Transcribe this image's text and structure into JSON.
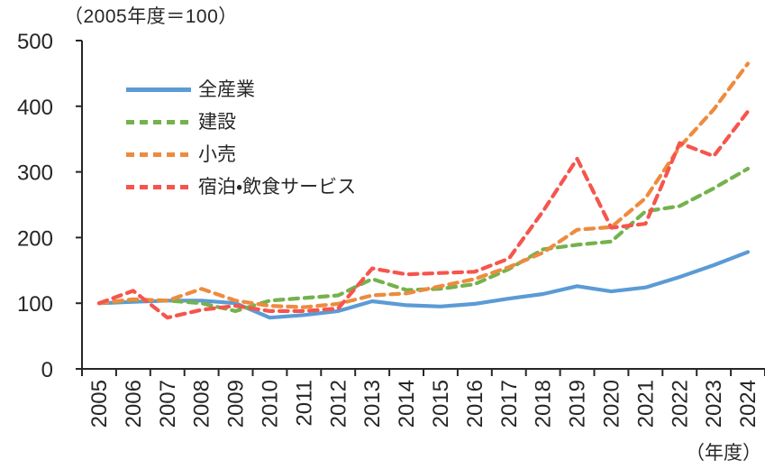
{
  "chart_data": {
    "type": "line",
    "note": "（2005年度＝100）",
    "xlabel": "（年度）",
    "categories": [
      "2005",
      "2006",
      "2007",
      "2008",
      "2009",
      "2010",
      "2011",
      "2012",
      "2013",
      "2014",
      "2015",
      "2016",
      "2017",
      "2018",
      "2019",
      "2020",
      "2021",
      "2022",
      "2023",
      "2024"
    ],
    "ylim": [
      0,
      500
    ],
    "yticks": [
      0,
      100,
      200,
      300,
      400,
      500
    ],
    "grid": false,
    "legend_position": "upper-left-inside",
    "axis_color": "#262626",
    "text_color": "#262626",
    "series": [
      {
        "id": "all-industries",
        "name": "全産業",
        "color": "#5B9BD5",
        "style": "solid",
        "values": [
          100,
          102,
          104,
          104,
          100,
          78,
          82,
          88,
          103,
          97,
          95,
          99,
          107,
          114,
          126,
          118,
          124,
          140,
          158,
          178
        ]
      },
      {
        "id": "construction",
        "name": "建設",
        "color": "#74B24E",
        "style": "dashed",
        "values": [
          100,
          105,
          104,
          100,
          88,
          104,
          108,
          112,
          137,
          120,
          122,
          129,
          152,
          182,
          189,
          194,
          240,
          248,
          275,
          305
        ]
      },
      {
        "id": "retail",
        "name": "小売",
        "color": "#ED8B3F",
        "style": "dashed",
        "values": [
          100,
          106,
          104,
          122,
          104,
          96,
          94,
          99,
          112,
          115,
          126,
          137,
          155,
          177,
          212,
          216,
          260,
          338,
          395,
          465
        ]
      },
      {
        "id": "accommodation-food-services",
        "name": "宿泊・飲食サービス",
        "color": "#F5554D",
        "style": "dashed",
        "values": [
          100,
          119,
          78,
          90,
          96,
          88,
          88,
          92,
          153,
          144,
          146,
          148,
          168,
          240,
          320,
          215,
          221,
          344,
          324,
          392
        ]
      }
    ]
  }
}
